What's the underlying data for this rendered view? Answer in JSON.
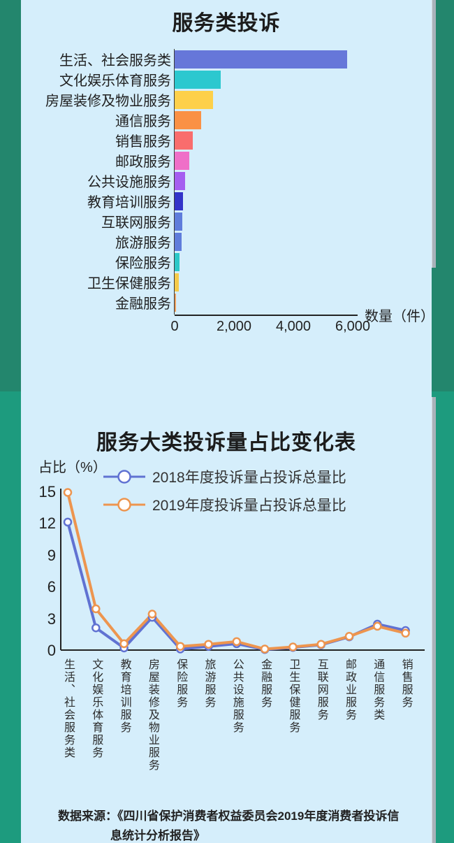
{
  "colors": {
    "background_top": "#23866d",
    "background_bottom": "#1d9b7e",
    "panel": "#d5eefb",
    "scrollbar": "#a9b2ba",
    "series_2018": "#6072d2",
    "series_2019": "#ed954f"
  },
  "footer": {
    "line1": "数据来源：《四川省保护消费者权益委员会2019年度消费者投诉信",
    "line2": "息统计分析报告》"
  },
  "chart_data": [
    {
      "type": "bar",
      "orientation": "horizontal",
      "title": "服务类投诉",
      "xlabel": "数量（件）",
      "xlim": [
        0,
        6000
      ],
      "tick_labels": [
        "0",
        "2,000",
        "4,000",
        "6,000"
      ],
      "tick_values": [
        0,
        2000,
        4000,
        6000
      ],
      "categories": [
        "生活、社会服务类",
        "文化娱乐体育服务",
        "房屋装修及物业服务",
        "通信服务",
        "销售服务",
        "邮政服务",
        "公共设施服务",
        "教育培训服务",
        "互联网服务",
        "旅游服务",
        "保险服务",
        "卫生保健服务",
        "金融服务"
      ],
      "values": [
        5800,
        1550,
        1300,
        900,
        620,
        500,
        350,
        270,
        250,
        230,
        160,
        130,
        50
      ],
      "bar_colors": [
        "#6677d9",
        "#2cc8cf",
        "#fdd04a",
        "#fa9145",
        "#f96d6d",
        "#ef6fc8",
        "#a55ef0",
        "#3334c9",
        "#5f7cdb",
        "#5f7cdb",
        "#2dc8c8",
        "#f5cb4a",
        "#eda05c"
      ]
    },
    {
      "type": "line",
      "title": "服务大类投诉量占比变化表",
      "ylabel": "占比（%）",
      "ylim": [
        0,
        15
      ],
      "yticks": [
        0,
        3,
        6,
        9,
        12,
        15
      ],
      "grid": false,
      "legend_position": "top",
      "categories": [
        "生活、社会服务类",
        "文化娱乐体育服务",
        "教育培训服务",
        "房屋装修及物业服务",
        "保险服务",
        "旅游服务",
        "公共设施服务",
        "金融服务",
        "卫生保健服务",
        "互联网服务",
        "邮政业服务",
        "通信服务类",
        "销售服务"
      ],
      "series": [
        {
          "name": "2018年度投诉量占投诉总量比",
          "color": "#6072d2",
          "values": [
            12.1,
            2.1,
            0.2,
            3.1,
            0.1,
            0.35,
            0.6,
            0.05,
            0.25,
            0.5,
            1.25,
            2.45,
            1.85
          ]
        },
        {
          "name": "2019年度投诉量占投诉总量比",
          "color": "#ed954f",
          "values": [
            14.9,
            3.9,
            0.6,
            3.4,
            0.35,
            0.55,
            0.8,
            0.1,
            0.3,
            0.55,
            1.3,
            2.25,
            1.6
          ]
        }
      ]
    }
  ]
}
